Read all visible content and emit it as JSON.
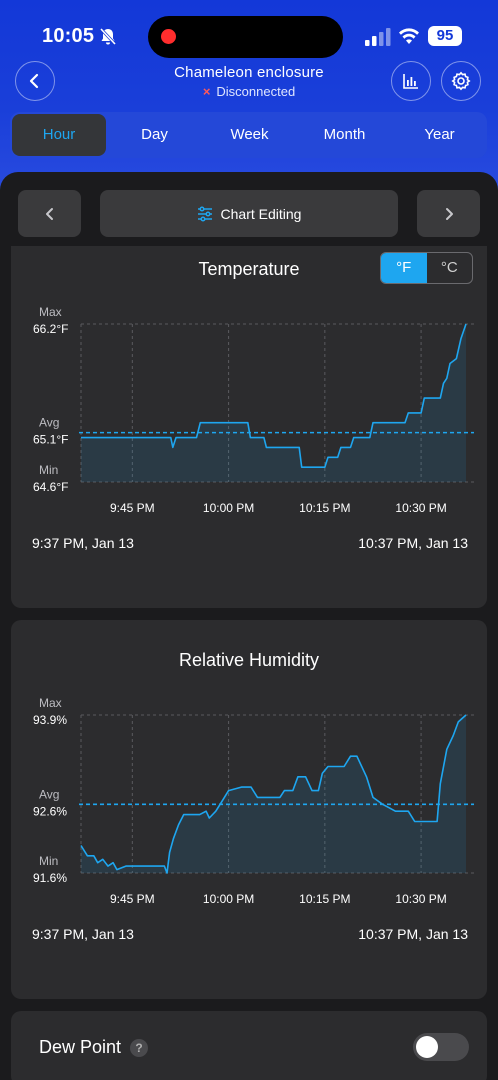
{
  "status_bar": {
    "time": "10:05",
    "battery": "95"
  },
  "header": {
    "title": "Chameleon enclosure",
    "status": "Disconnected"
  },
  "tabs": [
    {
      "label": "Hour",
      "active": true
    },
    {
      "label": "Day",
      "active": false
    },
    {
      "label": "Week",
      "active": false
    },
    {
      "label": "Month",
      "active": false
    },
    {
      "label": "Year",
      "active": false
    }
  ],
  "nav": {
    "edit_label": "Chart Editing"
  },
  "colors": {
    "accent": "#1ea6f0",
    "header_blue": "#1338d8",
    "panel": "#2c2c2e"
  },
  "temperature": {
    "title": "Temperature",
    "unit_f": "°F",
    "unit_c": "°C",
    "start_label": "9:37 PM,  Jan 13",
    "end_label": "10:37 PM,  Jan 13",
    "chart_data": {
      "type": "line",
      "title": "Temperature",
      "x_ticks": [
        "9:45 PM",
        "10:00 PM",
        "10:15 PM",
        "10:30 PM"
      ],
      "y_markers": [
        {
          "name": "Max",
          "value": "66.2°F"
        },
        {
          "name": "Avg",
          "value": "65.1°F"
        },
        {
          "name": "Min",
          "value": "64.6°F"
        }
      ],
      "ylim": [
        64.6,
        66.2
      ],
      "avg": 65.1,
      "x_range_minutes": [
        0,
        60
      ],
      "series": [
        {
          "points": [
            [
              0,
              65.05
            ],
            [
              14,
              65.05
            ],
            [
              14.3,
              64.95
            ],
            [
              14.8,
              65.05
            ],
            [
              18,
              65.05
            ],
            [
              18.6,
              65.2
            ],
            [
              26,
              65.2
            ],
            [
              26.4,
              65.05
            ],
            [
              28.5,
              65.05
            ],
            [
              28.9,
              64.95
            ],
            [
              34,
              64.95
            ],
            [
              34.4,
              64.75
            ],
            [
              38,
              64.75
            ],
            [
              38.5,
              64.85
            ],
            [
              40,
              64.85
            ],
            [
              40.5,
              64.95
            ],
            [
              42,
              64.95
            ],
            [
              42.5,
              65.05
            ],
            [
              45,
              65.05
            ],
            [
              45.5,
              65.2
            ],
            [
              50.5,
              65.2
            ],
            [
              51,
              65.3
            ],
            [
              53,
              65.3
            ],
            [
              53.5,
              65.45
            ],
            [
              56,
              65.45
            ],
            [
              56.5,
              65.6
            ],
            [
              57,
              65.65
            ],
            [
              57.5,
              65.8
            ],
            [
              58.5,
              65.85
            ],
            [
              59.2,
              66.05
            ],
            [
              60,
              66.2
            ]
          ]
        }
      ]
    }
  },
  "humidity": {
    "title": "Relative Humidity",
    "start_label": "9:37 PM,  Jan 13",
    "end_label": "10:37 PM,  Jan 13",
    "chart_data": {
      "type": "line",
      "title": "Relative Humidity",
      "x_ticks": [
        "9:45 PM",
        "10:00 PM",
        "10:15 PM",
        "10:30 PM"
      ],
      "y_markers": [
        {
          "name": "Max",
          "value": "93.9%"
        },
        {
          "name": "Avg",
          "value": "92.6%"
        },
        {
          "name": "Min",
          "value": "91.6%"
        }
      ],
      "ylim": [
        91.6,
        93.9
      ],
      "avg": 92.6,
      "x_range_minutes": [
        0,
        60
      ],
      "series": [
        {
          "points": [
            [
              0,
              92.0
            ],
            [
              1,
              91.85
            ],
            [
              2,
              91.85
            ],
            [
              2.6,
              91.75
            ],
            [
              3.4,
              91.8
            ],
            [
              4.2,
              91.7
            ],
            [
              5,
              91.75
            ],
            [
              5.6,
              91.65
            ],
            [
              7,
              91.7
            ],
            [
              13,
              91.7
            ],
            [
              13.4,
              91.6
            ],
            [
              13.8,
              91.9
            ],
            [
              14.4,
              92.1
            ],
            [
              15.2,
              92.3
            ],
            [
              16,
              92.45
            ],
            [
              18.5,
              92.45
            ],
            [
              19.5,
              92.5
            ],
            [
              20,
              92.4
            ],
            [
              21,
              92.5
            ],
            [
              22,
              92.65
            ],
            [
              23,
              92.8
            ],
            [
              25,
              92.85
            ],
            [
              26.5,
              92.85
            ],
            [
              27.5,
              92.7
            ],
            [
              31,
              92.7
            ],
            [
              31.7,
              92.8
            ],
            [
              33,
              92.8
            ],
            [
              33.8,
              93.0
            ],
            [
              35,
              93.0
            ],
            [
              36,
              92.8
            ],
            [
              37,
              92.8
            ],
            [
              37.6,
              93.05
            ],
            [
              38.5,
              93.15
            ],
            [
              41,
              93.15
            ],
            [
              42,
              93.3
            ],
            [
              43,
              93.3
            ],
            [
              44.5,
              93.0
            ],
            [
              45.5,
              92.7
            ],
            [
              47,
              92.6
            ],
            [
              48,
              92.55
            ],
            [
              49,
              92.5
            ],
            [
              51,
              92.5
            ],
            [
              52,
              92.35
            ],
            [
              55.5,
              92.35
            ],
            [
              56,
              92.9
            ],
            [
              57,
              93.4
            ],
            [
              58,
              93.6
            ],
            [
              58.8,
              93.8
            ],
            [
              60,
              93.9
            ]
          ]
        }
      ]
    }
  },
  "dew_point": {
    "label": "Dew Point",
    "help": "?",
    "enabled": false
  }
}
